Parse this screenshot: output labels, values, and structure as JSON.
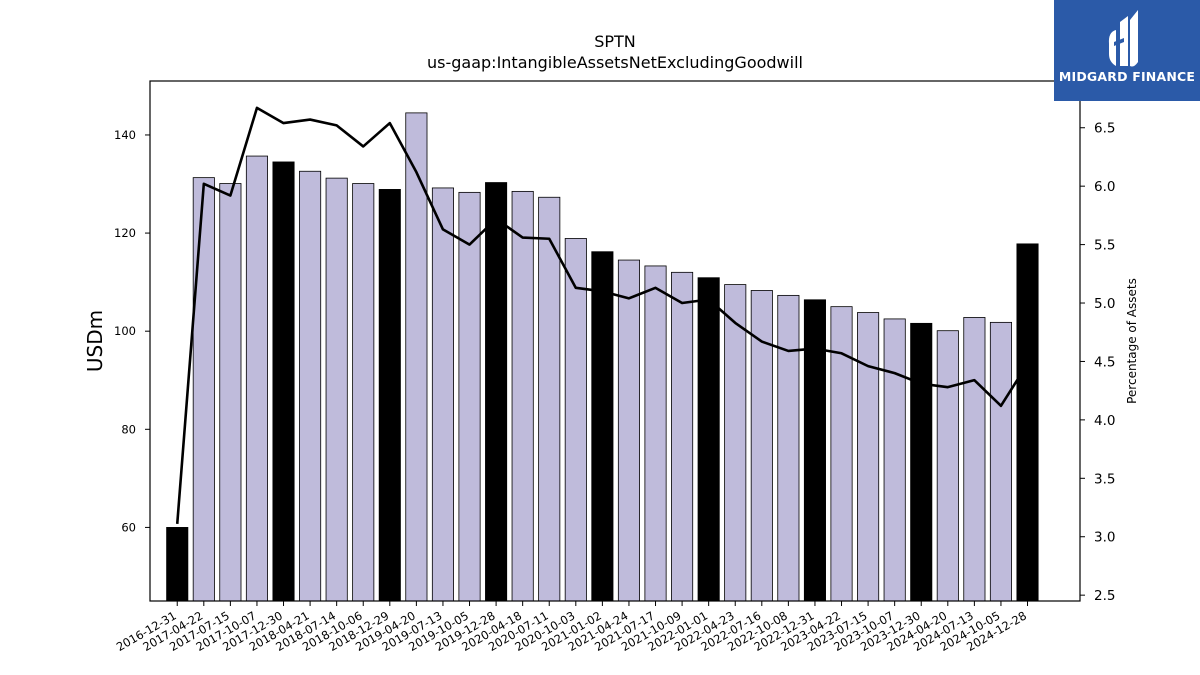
{
  "chart_data": {
    "type": "bar",
    "title": "SPTN",
    "subtitle": "us-gaap:IntangibleAssetsNetExcludingGoodwill",
    "ylabel": "USDm",
    "y2label": "Percentage of Assets",
    "ylim": [
      45,
      151
    ],
    "y2lim": [
      2.45,
      6.9
    ],
    "yticks": [
      60,
      80,
      100,
      120,
      140
    ],
    "y2ticks": [
      "2.5",
      "3.0",
      "3.5",
      "4.0",
      "4.5",
      "5.0",
      "5.5",
      "6.0",
      "6.5"
    ],
    "categories": [
      "2016-12-31",
      "2017-04-22",
      "2017-07-15",
      "2017-10-07",
      "2017-12-30",
      "2018-04-21",
      "2018-07-14",
      "2018-10-06",
      "2018-12-29",
      "2019-04-20",
      "2019-07-13",
      "2019-10-05",
      "2019-12-28",
      "2020-04-18",
      "2020-07-11",
      "2020-10-03",
      "2021-01-02",
      "2021-04-24",
      "2021-07-17",
      "2021-10-09",
      "2022-01-01",
      "2022-04-23",
      "2022-07-16",
      "2022-10-08",
      "2022-12-31",
      "2023-04-22",
      "2023-07-15",
      "2023-10-07",
      "2023-12-30",
      "2024-04-20",
      "2024-07-13",
      "2024-10-05",
      "2024-12-28"
    ],
    "series": [
      {
        "values": [
          60.0,
          131.3,
          130.1,
          135.7,
          134.5,
          132.6,
          131.2,
          130.1,
          128.9,
          144.5,
          129.2,
          128.3,
          130.3,
          128.5,
          127.3,
          118.9,
          116.2,
          114.5,
          113.3,
          112.0,
          110.9,
          109.5,
          108.3,
          107.3,
          106.4,
          105.0,
          103.8,
          102.5,
          101.6,
          100.1,
          102.8,
          101.8,
          117.8
        ],
        "highlight": [
          true,
          false,
          false,
          false,
          true,
          false,
          false,
          false,
          true,
          false,
          false,
          false,
          true,
          false,
          false,
          false,
          true,
          false,
          false,
          false,
          true,
          false,
          false,
          false,
          true,
          false,
          false,
          false,
          true,
          false,
          false,
          false,
          true
        ]
      },
      {
        "axis": "right",
        "values": [
          3.11,
          6.02,
          5.92,
          6.67,
          6.54,
          6.57,
          6.52,
          6.34,
          6.54,
          6.12,
          5.63,
          5.5,
          5.72,
          5.56,
          5.55,
          5.13,
          5.1,
          5.04,
          5.13,
          5.0,
          5.03,
          4.83,
          4.67,
          4.59,
          4.61,
          4.57,
          4.46,
          4.4,
          4.31,
          4.28,
          4.34,
          4.12,
          4.48
        ]
      }
    ],
    "colors": {
      "bar": "#bfbbdb",
      "bar_highlight": "#000000",
      "line": "#000000"
    }
  },
  "logo": {
    "text": "MIDGARD FINANCE",
    "background": "#2b5aa8"
  }
}
